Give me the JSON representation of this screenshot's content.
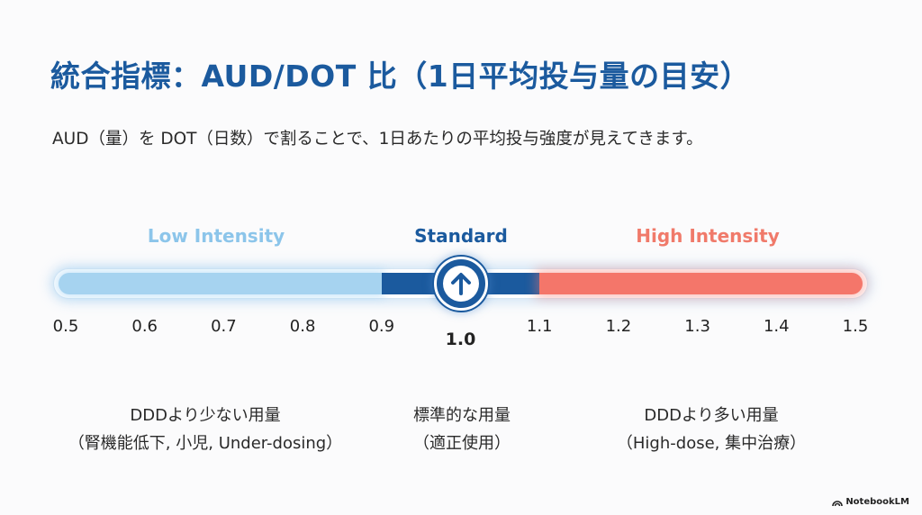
{
  "header": {
    "title": "統合指標：AUD/DOT 比（1日平均投与量の目安）",
    "subtitle": "AUD（量）を DOT（日数）で割ることで、1日あたりの平均投与強度が見えてきます。"
  },
  "zones": [
    {
      "label": "Low Intensity",
      "from": 0.5,
      "to": 0.9,
      "color": "#a6d3f0",
      "text_color": "#8cc5ea",
      "desc_line1": "DDDより少ない用量",
      "desc_line2": "（腎機能低下, 小児, Under-dosing）"
    },
    {
      "label": "Standard",
      "from": 0.9,
      "to": 1.1,
      "color": "#1b5a9e",
      "text_color": "#1b5a9e",
      "desc_line1": "標準的な用量",
      "desc_line2": "（適正使用）"
    },
    {
      "label": "High Intensity",
      "from": 1.1,
      "to": 1.5,
      "color": "#f4766a",
      "text_color": "#f07a6a",
      "desc_line1": "DDDより多い用量",
      "desc_line2": "（High-dose, 集中治療）"
    }
  ],
  "scale": {
    "min": 0.5,
    "max": 1.5,
    "ticks": [
      "0.5",
      "0.6",
      "0.7",
      "0.8",
      "0.9",
      "1.0",
      "1.1",
      "1.2",
      "1.3",
      "1.4",
      "1.5"
    ],
    "marker_value": 1.0,
    "marker_icon": "arrow-up-icon"
  },
  "brand": {
    "icon": "notebooklm-logo-icon",
    "name": "NotebookLM"
  }
}
